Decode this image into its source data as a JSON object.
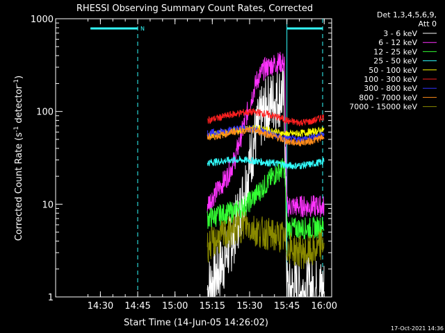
{
  "chart_data": {
    "type": "line",
    "title": "RHESSI Observing Summary Count Rates, Corrected",
    "xlabel": "Start Time (14-Jun-05 14:26:02)",
    "ylabel": "Corrected Count Rate (s-1 detector-1)",
    "ylabel_parts": {
      "main": "Corrected Count Rate (s",
      "sup1": "-1",
      "mid": " detector",
      "sup2": "-1",
      "end": ")"
    },
    "y_scale": "log",
    "ylim": [
      1,
      1000
    ],
    "x_range_minutes": [
      14.2,
      16.05
    ],
    "x_ticks": [
      "14:30",
      "14:45",
      "15:00",
      "15:15",
      "15:30",
      "15:45",
      "16:00"
    ],
    "y_ticks": [
      "1",
      "10",
      "100",
      "1000"
    ],
    "legend_header": [
      "Det 1,3,4,5,6,9,",
      "Att 0"
    ],
    "legend_position": "top-right, outside plot",
    "series": [
      {
        "name": "3 - 6 keV",
        "color": "#ffffff",
        "x": [
          "15:13",
          "15:18",
          "15:22",
          "15:26",
          "15:29",
          "15:32",
          "15:35",
          "15:38",
          "15:41",
          "15:43",
          "15:44",
          "15:45",
          "15:47",
          "15:50",
          "15:53",
          "15:56",
          "16:00"
        ],
        "values": [
          1.2,
          2.0,
          3.5,
          8,
          20,
          50,
          90,
          120,
          140,
          150,
          130,
          1.2,
          1.2,
          1.2,
          1.2,
          1.2,
          1.2
        ]
      },
      {
        "name": "6 - 12 keV",
        "color": "#ff33ff",
        "x": [
          "15:13",
          "15:17",
          "15:21",
          "15:24",
          "15:27",
          "15:30",
          "15:33",
          "15:36",
          "15:39",
          "15:42",
          "15:44",
          "15:45",
          "15:48",
          "15:52",
          "15:56",
          "16:00"
        ],
        "values": [
          10,
          14,
          20,
          30,
          60,
          120,
          220,
          290,
          320,
          340,
          330,
          9.5,
          9.5,
          9.5,
          9.5,
          9.5
        ]
      },
      {
        "name": "12 - 25 keV",
        "color": "#33ff33",
        "x": [
          "15:13",
          "15:17",
          "15:21",
          "15:25",
          "15:29",
          "15:33",
          "15:37",
          "15:41",
          "15:44",
          "15:45",
          "15:50",
          "15:55",
          "16:00"
        ],
        "values": [
          7,
          7.5,
          8,
          8.5,
          10,
          13,
          17,
          22,
          25,
          5.5,
          5.5,
          5.5,
          5.8
        ]
      },
      {
        "name": "25 - 50 keV",
        "color": "#33ffff",
        "x": [
          "15:13",
          "15:18",
          "15:23",
          "15:28",
          "15:33",
          "15:38",
          "15:43",
          "15:45",
          "15:50",
          "15:55",
          "16:00"
        ],
        "values": [
          28,
          29,
          30,
          30,
          29,
          28,
          27,
          26,
          26,
          27,
          29
        ]
      },
      {
        "name": "50 - 100 keV",
        "color": "#ffff00",
        "x": [
          "15:13",
          "15:18",
          "15:23",
          "15:28",
          "15:33",
          "15:38",
          "15:43",
          "15:45",
          "15:50",
          "15:55",
          "16:00"
        ],
        "values": [
          55,
          58,
          62,
          65,
          66,
          62,
          58,
          57,
          58,
          60,
          63
        ]
      },
      {
        "name": "100 - 300 keV",
        "color": "#ff2020",
        "x": [
          "15:13",
          "15:18",
          "15:23",
          "15:28",
          "15:33",
          "15:38",
          "15:43",
          "15:46",
          "15:50",
          "15:55",
          "16:00"
        ],
        "values": [
          80,
          86,
          93,
          98,
          98,
          92,
          84,
          78,
          76,
          78,
          88
        ]
      },
      {
        "name": "300 - 800 keV",
        "color": "#3333ff",
        "x": [
          "15:13",
          "15:18",
          "15:23",
          "15:28",
          "15:33",
          "15:38",
          "15:43",
          "15:46",
          "15:50",
          "15:55",
          "16:00"
        ],
        "values": [
          58,
          60,
          64,
          66,
          64,
          58,
          52,
          50,
          50,
          52,
          58
        ]
      },
      {
        "name": "800 - 7000 keV",
        "color": "#ff8c1a",
        "x": [
          "15:13",
          "15:18",
          "15:23",
          "15:28",
          "15:33",
          "15:38",
          "15:43",
          "15:46",
          "15:50",
          "15:55",
          "16:00"
        ],
        "values": [
          52,
          55,
          60,
          63,
          62,
          56,
          50,
          47,
          46,
          48,
          53
        ]
      },
      {
        "name": "7000 - 15000 keV",
        "color": "#8a8a00",
        "x": [
          "15:13",
          "15:16",
          "15:19",
          "15:22",
          "15:25",
          "15:28",
          "15:31",
          "15:34",
          "15:37",
          "15:40",
          "15:43",
          "15:45",
          "15:48",
          "15:51",
          "15:54",
          "15:57",
          "16:00"
        ],
        "values": [
          3.5,
          4,
          4.5,
          5,
          5.5,
          6,
          5.5,
          5,
          4.8,
          4.5,
          4.5,
          3.5,
          3.2,
          3.0,
          3.0,
          3.2,
          4.0
        ]
      }
    ],
    "flag_segments": [
      {
        "label": "N",
        "color": "#33ffff",
        "start": "14:26",
        "end": "14:45"
      },
      {
        "label": "",
        "color": "#33ffff",
        "start": "15:45",
        "end": "16:02"
      }
    ],
    "vertical_markers": {
      "dashed": [
        "14:45",
        "16:02"
      ],
      "solid": [
        "15:45"
      ]
    }
  },
  "footer_timestamp": "17-Oct-2021 14:36"
}
